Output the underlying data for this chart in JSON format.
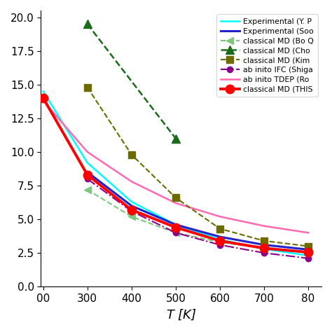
{
  "xlabel": "$T$ [K]",
  "xlim": [
    195,
    830
  ],
  "ylim": [
    0,
    20.5
  ],
  "experimental_YP": {
    "label": "Experimental (Y. P",
    "color": "cyan",
    "linestyle": "-",
    "linewidth": 1.8,
    "x": [
      200,
      300,
      400,
      500,
      600,
      700,
      800
    ],
    "y": [
      14.5,
      9.2,
      6.3,
      4.6,
      3.5,
      2.8,
      2.3
    ]
  },
  "experimental_Soo": {
    "label": "Experimental (Soo",
    "color": "#2222cc",
    "linestyle": "-",
    "linewidth": 2.2,
    "x": [
      300,
      400,
      500,
      600,
      700,
      800
    ],
    "y": [
      8.5,
      6.0,
      4.6,
      3.7,
      3.1,
      2.75
    ]
  },
  "classical_MD_BoQ": {
    "label": "classical MD (Bo Q",
    "color": "#7dc87d",
    "linestyle": "--",
    "linewidth": 1.5,
    "marker": "<",
    "markersize": 7,
    "x": [
      300,
      400,
      500,
      600,
      700,
      800
    ],
    "y": [
      7.2,
      5.2,
      4.0,
      3.3,
      2.85,
      2.55
    ]
  },
  "classical_MD_Cho": {
    "label": "classical MD (Cho",
    "color": "#1a6b1a",
    "linestyle": "--",
    "linewidth": 1.8,
    "marker": "^",
    "markersize": 9,
    "x": [
      300,
      500
    ],
    "y": [
      19.5,
      11.0
    ]
  },
  "classical_MD_Kim": {
    "label": "classical MD (Kim",
    "color": "#6b6b00",
    "linestyle": "--",
    "linewidth": 1.5,
    "marker": "s",
    "markersize": 7,
    "x": [
      300,
      400,
      500,
      600,
      700,
      800
    ],
    "y": [
      14.8,
      9.8,
      6.6,
      4.3,
      3.4,
      3.0
    ]
  },
  "ab_initio_IFC": {
    "label": "ab inito IFC (Shiga",
    "color": "#8b008b",
    "linestyle": "-.",
    "linewidth": 1.5,
    "marker": "o",
    "markersize": 6,
    "x": [
      300,
      400,
      500,
      600,
      700,
      800
    ],
    "y": [
      8.0,
      5.6,
      4.0,
      3.1,
      2.5,
      2.1
    ]
  },
  "ab_initio_TDEP": {
    "label": "ab inito TDEP (Ro",
    "color": "#ff69b4",
    "linestyle": "-",
    "linewidth": 1.8,
    "x": [
      200,
      300,
      400,
      500,
      600,
      700,
      800
    ],
    "y": [
      13.8,
      10.0,
      7.8,
      6.2,
      5.2,
      4.5,
      4.0
    ]
  },
  "classical_MD_THIS": {
    "label": "classical MD (THIS",
    "color": "red",
    "linestyle": "-",
    "linewidth": 2.8,
    "marker": "o",
    "markersize": 9,
    "x": [
      200,
      300,
      400,
      500,
      600,
      700,
      800
    ],
    "y": [
      14.0,
      8.3,
      5.7,
      4.4,
      3.4,
      2.85,
      2.55
    ]
  },
  "legend_labels": [
    "Experimental (Y. P",
    "Experimental (Soo",
    "classical MD (Bo Q",
    "classical MD (Cho",
    "classical MD (Kim",
    "ab inito IFC (Shiga",
    "ab inito TDEP (Ro",
    "classical MD (THIS"
  ],
  "xticks": [
    200,
    300,
    400,
    500,
    600,
    700,
    800
  ],
  "xticklabels": [
    "00",
    "300",
    "400",
    "500",
    "600",
    "700",
    "80"
  ],
  "figsize": [
    4.74,
    4.74
  ],
  "dpi": 100
}
